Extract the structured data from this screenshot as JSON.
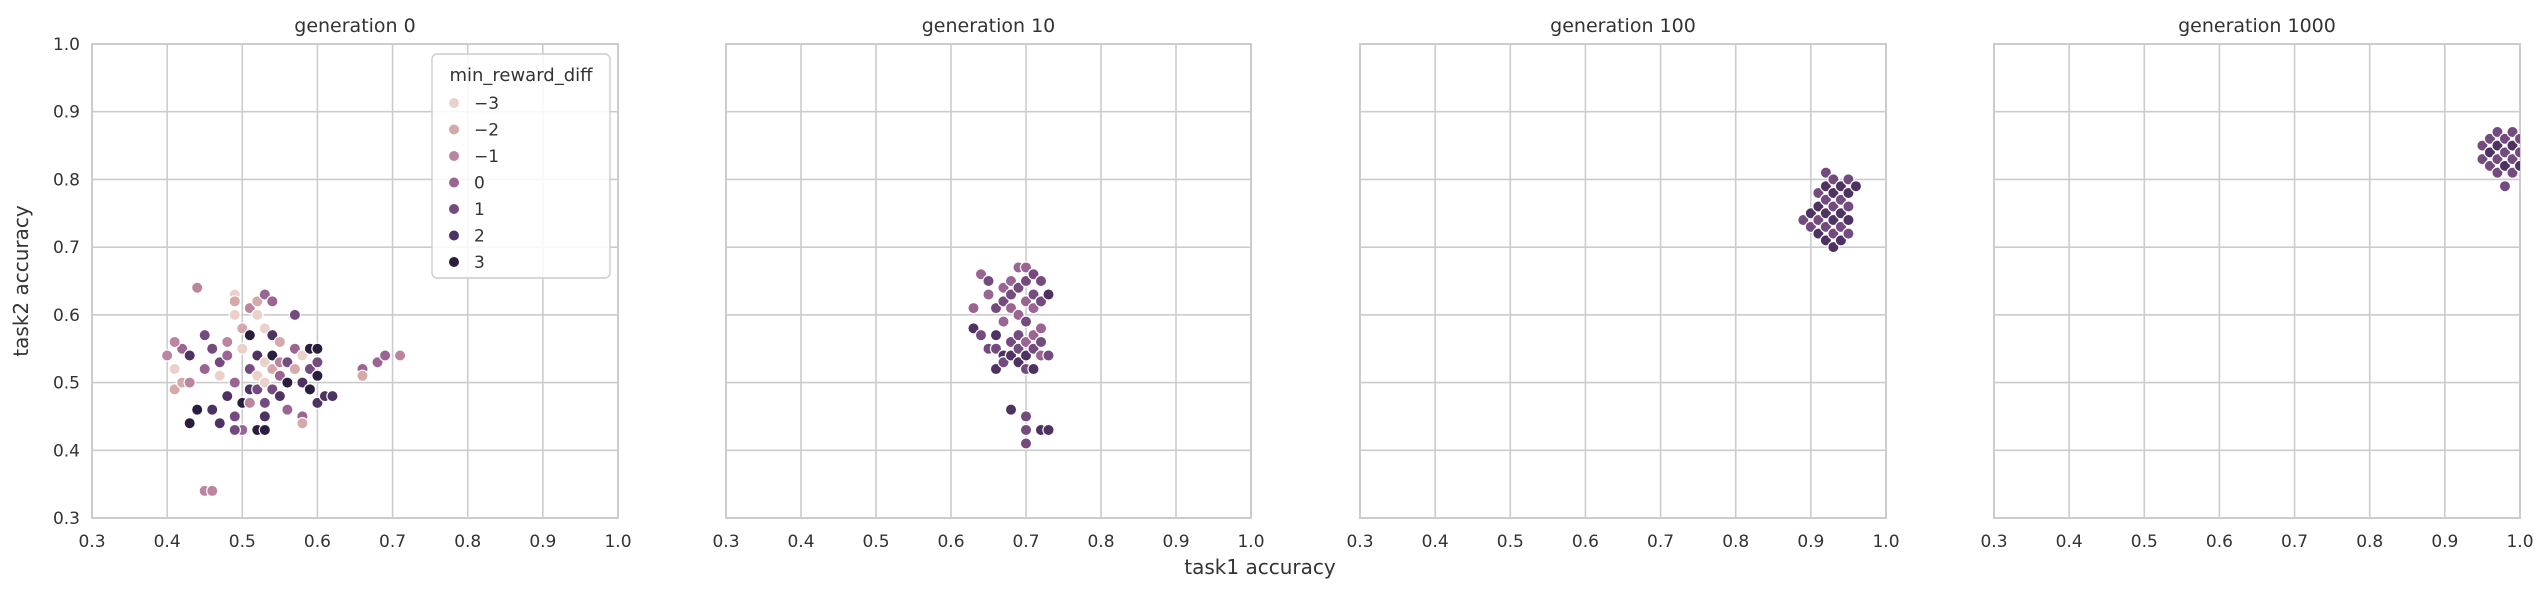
{
  "chart_data": [
    {
      "type": "scatter",
      "title": "generation 0",
      "xlabel": "",
      "ylabel": "task2 accuracy",
      "xlim": [
        0.3,
        1.0
      ],
      "ylim": [
        0.3,
        1.0
      ],
      "xticks": [
        "0.3",
        "0.4",
        "0.5",
        "0.6",
        "0.7",
        "0.8",
        "0.9",
        "1.0"
      ],
      "yticks": [
        "0.3",
        "0.4",
        "0.5",
        "0.6",
        "0.7",
        "0.8",
        "0.9",
        "1.0"
      ],
      "grid": true,
      "legend": {
        "title": "min_reward_diff",
        "placement": "top-right",
        "entries": [
          {
            "label": "−3",
            "color": "#ead1c9"
          },
          {
            "label": "−2",
            "color": "#d5a9a9"
          },
          {
            "label": "−1",
            "color": "#bb85a0"
          },
          {
            "label": "0",
            "color": "#9a6592"
          },
          {
            "label": "1",
            "color": "#744b7f"
          },
          {
            "label": "2",
            "color": "#4d3262"
          },
          {
            "label": "3",
            "color": "#2b1d3e"
          }
        ]
      },
      "points": [
        {
          "x": 0.4,
          "y": 0.54,
          "c": -1
        },
        {
          "x": 0.41,
          "y": 0.52,
          "c": -3
        },
        {
          "x": 0.41,
          "y": 0.49,
          "c": -2
        },
        {
          "x": 0.42,
          "y": 0.55,
          "c": 0
        },
        {
          "x": 0.41,
          "y": 0.56,
          "c": -1
        },
        {
          "x": 0.42,
          "y": 0.5,
          "c": -2
        },
        {
          "x": 0.43,
          "y": 0.5,
          "c": -1
        },
        {
          "x": 0.43,
          "y": 0.54,
          "c": 2
        },
        {
          "x": 0.44,
          "y": 0.64,
          "c": -1
        },
        {
          "x": 0.44,
          "y": 0.46,
          "c": 3
        },
        {
          "x": 0.43,
          "y": 0.44,
          "c": 3
        },
        {
          "x": 0.45,
          "y": 0.57,
          "c": 1
        },
        {
          "x": 0.45,
          "y": 0.52,
          "c": 0
        },
        {
          "x": 0.46,
          "y": 0.55,
          "c": 1
        },
        {
          "x": 0.46,
          "y": 0.46,
          "c": 2
        },
        {
          "x": 0.47,
          "y": 0.44,
          "c": 2
        },
        {
          "x": 0.47,
          "y": 0.51,
          "c": -3
        },
        {
          "x": 0.47,
          "y": 0.53,
          "c": 1
        },
        {
          "x": 0.48,
          "y": 0.48,
          "c": 2
        },
        {
          "x": 0.48,
          "y": 0.54,
          "c": 0
        },
        {
          "x": 0.48,
          "y": 0.56,
          "c": -1
        },
        {
          "x": 0.49,
          "y": 0.63,
          "c": -3
        },
        {
          "x": 0.49,
          "y": 0.62,
          "c": -2
        },
        {
          "x": 0.49,
          "y": 0.6,
          "c": -3
        },
        {
          "x": 0.49,
          "y": 0.5,
          "c": 0
        },
        {
          "x": 0.49,
          "y": 0.45,
          "c": 1
        },
        {
          "x": 0.5,
          "y": 0.47,
          "c": 3
        },
        {
          "x": 0.5,
          "y": 0.43,
          "c": 0
        },
        {
          "x": 0.49,
          "y": 0.43,
          "c": 1
        },
        {
          "x": 0.5,
          "y": 0.55,
          "c": -3
        },
        {
          "x": 0.5,
          "y": 0.58,
          "c": -2
        },
        {
          "x": 0.51,
          "y": 0.52,
          "c": 1
        },
        {
          "x": 0.51,
          "y": 0.49,
          "c": 2
        },
        {
          "x": 0.51,
          "y": 0.47,
          "c": -1
        },
        {
          "x": 0.51,
          "y": 0.61,
          "c": -1
        },
        {
          "x": 0.51,
          "y": 0.57,
          "c": 3
        },
        {
          "x": 0.52,
          "y": 0.62,
          "c": -2
        },
        {
          "x": 0.52,
          "y": 0.6,
          "c": -3
        },
        {
          "x": 0.52,
          "y": 0.54,
          "c": 2
        },
        {
          "x": 0.52,
          "y": 0.51,
          "c": -3
        },
        {
          "x": 0.52,
          "y": 0.49,
          "c": 1
        },
        {
          "x": 0.52,
          "y": 0.43,
          "c": 3
        },
        {
          "x": 0.53,
          "y": 0.63,
          "c": 0
        },
        {
          "x": 0.53,
          "y": 0.58,
          "c": -3
        },
        {
          "x": 0.53,
          "y": 0.53,
          "c": -3
        },
        {
          "x": 0.53,
          "y": 0.5,
          "c": -3
        },
        {
          "x": 0.53,
          "y": 0.47,
          "c": 1
        },
        {
          "x": 0.53,
          "y": 0.45,
          "c": 2
        },
        {
          "x": 0.53,
          "y": 0.43,
          "c": 3
        },
        {
          "x": 0.54,
          "y": 0.62,
          "c": 0
        },
        {
          "x": 0.54,
          "y": 0.57,
          "c": 2
        },
        {
          "x": 0.54,
          "y": 0.52,
          "c": -2
        },
        {
          "x": 0.54,
          "y": 0.49,
          "c": 1
        },
        {
          "x": 0.54,
          "y": 0.54,
          "c": 3
        },
        {
          "x": 0.55,
          "y": 0.56,
          "c": -2
        },
        {
          "x": 0.55,
          "y": 0.53,
          "c": -1
        },
        {
          "x": 0.55,
          "y": 0.51,
          "c": 0
        },
        {
          "x": 0.55,
          "y": 0.48,
          "c": 2
        },
        {
          "x": 0.56,
          "y": 0.46,
          "c": 0
        },
        {
          "x": 0.56,
          "y": 0.53,
          "c": 1
        },
        {
          "x": 0.56,
          "y": 0.5,
          "c": 3
        },
        {
          "x": 0.57,
          "y": 0.6,
          "c": 1
        },
        {
          "x": 0.57,
          "y": 0.55,
          "c": 0
        },
        {
          "x": 0.57,
          "y": 0.52,
          "c": -2
        },
        {
          "x": 0.58,
          "y": 0.45,
          "c": 0
        },
        {
          "x": 0.58,
          "y": 0.44,
          "c": -2
        },
        {
          "x": 0.58,
          "y": 0.5,
          "c": 2
        },
        {
          "x": 0.58,
          "y": 0.54,
          "c": -3
        },
        {
          "x": 0.59,
          "y": 0.55,
          "c": 3
        },
        {
          "x": 0.59,
          "y": 0.52,
          "c": 1
        },
        {
          "x": 0.59,
          "y": 0.49,
          "c": 3
        },
        {
          "x": 0.6,
          "y": 0.55,
          "c": 3
        },
        {
          "x": 0.6,
          "y": 0.51,
          "c": 3
        },
        {
          "x": 0.6,
          "y": 0.47,
          "c": 2
        },
        {
          "x": 0.6,
          "y": 0.53,
          "c": 1
        },
        {
          "x": 0.61,
          "y": 0.48,
          "c": 2
        },
        {
          "x": 0.62,
          "y": 0.48,
          "c": 2
        },
        {
          "x": 0.66,
          "y": 0.52,
          "c": 0
        },
        {
          "x": 0.66,
          "y": 0.51,
          "c": -2
        },
        {
          "x": 0.68,
          "y": 0.53,
          "c": 0
        },
        {
          "x": 0.69,
          "y": 0.54,
          "c": 0
        },
        {
          "x": 0.71,
          "y": 0.54,
          "c": -1
        },
        {
          "x": 0.45,
          "y": 0.34,
          "c": -1
        },
        {
          "x": 0.46,
          "y": 0.34,
          "c": -1
        }
      ]
    },
    {
      "type": "scatter",
      "title": "generation 10",
      "xlabel": "task1 accuracy",
      "ylabel": "",
      "xlim": [
        0.3,
        1.0
      ],
      "ylim": [
        0.3,
        1.0
      ],
      "xticks": [
        "0.3",
        "0.4",
        "0.5",
        "0.6",
        "0.7",
        "0.8",
        "0.9",
        "1.0"
      ],
      "grid": true,
      "points": [
        {
          "x": 0.63,
          "y": 0.61,
          "c": 0
        },
        {
          "x": 0.63,
          "y": 0.58,
          "c": 2
        },
        {
          "x": 0.64,
          "y": 0.66,
          "c": 0
        },
        {
          "x": 0.64,
          "y": 0.57,
          "c": 1
        },
        {
          "x": 0.65,
          "y": 0.65,
          "c": 1
        },
        {
          "x": 0.65,
          "y": 0.63,
          "c": 0
        },
        {
          "x": 0.65,
          "y": 0.55,
          "c": 1
        },
        {
          "x": 0.66,
          "y": 0.55,
          "c": 1
        },
        {
          "x": 0.66,
          "y": 0.57,
          "c": 2
        },
        {
          "x": 0.66,
          "y": 0.61,
          "c": 1
        },
        {
          "x": 0.66,
          "y": 0.52,
          "c": 2
        },
        {
          "x": 0.67,
          "y": 0.64,
          "c": 0
        },
        {
          "x": 0.67,
          "y": 0.62,
          "c": 1
        },
        {
          "x": 0.67,
          "y": 0.59,
          "c": 0
        },
        {
          "x": 0.67,
          "y": 0.54,
          "c": 2
        },
        {
          "x": 0.67,
          "y": 0.53,
          "c": 1
        },
        {
          "x": 0.68,
          "y": 0.65,
          "c": 0
        },
        {
          "x": 0.68,
          "y": 0.63,
          "c": 1
        },
        {
          "x": 0.68,
          "y": 0.61,
          "c": 0
        },
        {
          "x": 0.68,
          "y": 0.56,
          "c": 1
        },
        {
          "x": 0.68,
          "y": 0.54,
          "c": 2
        },
        {
          "x": 0.68,
          "y": 0.46,
          "c": 2
        },
        {
          "x": 0.69,
          "y": 0.67,
          "c": 0
        },
        {
          "x": 0.69,
          "y": 0.64,
          "c": 1
        },
        {
          "x": 0.69,
          "y": 0.6,
          "c": 0
        },
        {
          "x": 0.69,
          "y": 0.57,
          "c": 1
        },
        {
          "x": 0.69,
          "y": 0.55,
          "c": 1
        },
        {
          "x": 0.69,
          "y": 0.53,
          "c": 2
        },
        {
          "x": 0.7,
          "y": 0.67,
          "c": 0
        },
        {
          "x": 0.7,
          "y": 0.65,
          "c": 1
        },
        {
          "x": 0.7,
          "y": 0.62,
          "c": 0
        },
        {
          "x": 0.7,
          "y": 0.59,
          "c": 1
        },
        {
          "x": 0.7,
          "y": 0.56,
          "c": 0
        },
        {
          "x": 0.7,
          "y": 0.54,
          "c": 2
        },
        {
          "x": 0.7,
          "y": 0.52,
          "c": 1
        },
        {
          "x": 0.7,
          "y": 0.45,
          "c": 1
        },
        {
          "x": 0.7,
          "y": 0.43,
          "c": 1
        },
        {
          "x": 0.7,
          "y": 0.41,
          "c": 1
        },
        {
          "x": 0.71,
          "y": 0.66,
          "c": 1
        },
        {
          "x": 0.71,
          "y": 0.63,
          "c": 1
        },
        {
          "x": 0.71,
          "y": 0.61,
          "c": 0
        },
        {
          "x": 0.71,
          "y": 0.57,
          "c": 0
        },
        {
          "x": 0.71,
          "y": 0.55,
          "c": 1
        },
        {
          "x": 0.71,
          "y": 0.52,
          "c": 2
        },
        {
          "x": 0.72,
          "y": 0.65,
          "c": 1
        },
        {
          "x": 0.72,
          "y": 0.62,
          "c": 1
        },
        {
          "x": 0.72,
          "y": 0.58,
          "c": 0
        },
        {
          "x": 0.72,
          "y": 0.56,
          "c": 1
        },
        {
          "x": 0.72,
          "y": 0.54,
          "c": 0
        },
        {
          "x": 0.72,
          "y": 0.43,
          "c": 2
        },
        {
          "x": 0.73,
          "y": 0.63,
          "c": 2
        },
        {
          "x": 0.73,
          "y": 0.54,
          "c": 1
        },
        {
          "x": 0.73,
          "y": 0.43,
          "c": 2
        }
      ]
    },
    {
      "type": "scatter",
      "title": "generation 100",
      "xlabel": "",
      "ylabel": "",
      "xlim": [
        0.3,
        1.0
      ],
      "ylim": [
        0.3,
        1.0
      ],
      "xticks": [
        "0.3",
        "0.4",
        "0.5",
        "0.6",
        "0.7",
        "0.8",
        "0.9",
        "1.0"
      ],
      "grid": true,
      "points": [
        {
          "x": 0.89,
          "y": 0.74,
          "c": 1
        },
        {
          "x": 0.9,
          "y": 0.75,
          "c": 2
        },
        {
          "x": 0.9,
          "y": 0.73,
          "c": 1
        },
        {
          "x": 0.91,
          "y": 0.78,
          "c": 1
        },
        {
          "x": 0.91,
          "y": 0.76,
          "c": 2
        },
        {
          "x": 0.91,
          "y": 0.74,
          "c": 1
        },
        {
          "x": 0.91,
          "y": 0.72,
          "c": 2
        },
        {
          "x": 0.92,
          "y": 0.81,
          "c": 1
        },
        {
          "x": 0.92,
          "y": 0.79,
          "c": 2
        },
        {
          "x": 0.92,
          "y": 0.77,
          "c": 1
        },
        {
          "x": 0.92,
          "y": 0.75,
          "c": 2
        },
        {
          "x": 0.92,
          "y": 0.73,
          "c": 1
        },
        {
          "x": 0.92,
          "y": 0.71,
          "c": 2
        },
        {
          "x": 0.93,
          "y": 0.8,
          "c": 1
        },
        {
          "x": 0.93,
          "y": 0.78,
          "c": 2
        },
        {
          "x": 0.93,
          "y": 0.76,
          "c": 1
        },
        {
          "x": 0.93,
          "y": 0.74,
          "c": 2
        },
        {
          "x": 0.93,
          "y": 0.72,
          "c": 1
        },
        {
          "x": 0.93,
          "y": 0.7,
          "c": 2
        },
        {
          "x": 0.94,
          "y": 0.79,
          "c": 2
        },
        {
          "x": 0.94,
          "y": 0.77,
          "c": 1
        },
        {
          "x": 0.94,
          "y": 0.75,
          "c": 2
        },
        {
          "x": 0.94,
          "y": 0.73,
          "c": 1
        },
        {
          "x": 0.94,
          "y": 0.71,
          "c": 2
        },
        {
          "x": 0.95,
          "y": 0.8,
          "c": 1
        },
        {
          "x": 0.95,
          "y": 0.78,
          "c": 2
        },
        {
          "x": 0.95,
          "y": 0.76,
          "c": 1
        },
        {
          "x": 0.95,
          "y": 0.74,
          "c": 2
        },
        {
          "x": 0.95,
          "y": 0.72,
          "c": 1
        },
        {
          "x": 0.96,
          "y": 0.79,
          "c": 2
        }
      ]
    },
    {
      "type": "scatter",
      "title": "generation 1000",
      "xlabel": "",
      "ylabel": "",
      "xlim": [
        0.3,
        1.0
      ],
      "ylim": [
        0.3,
        1.0
      ],
      "xticks": [
        "0.3",
        "0.4",
        "0.5",
        "0.6",
        "0.7",
        "0.8",
        "0.9",
        "1.0"
      ],
      "grid": true,
      "points": [
        {
          "x": 0.95,
          "y": 0.85,
          "c": 1
        },
        {
          "x": 0.95,
          "y": 0.83,
          "c": 1
        },
        {
          "x": 0.96,
          "y": 0.86,
          "c": 1
        },
        {
          "x": 0.96,
          "y": 0.84,
          "c": 2
        },
        {
          "x": 0.96,
          "y": 0.82,
          "c": 1
        },
        {
          "x": 0.97,
          "y": 0.87,
          "c": 1
        },
        {
          "x": 0.97,
          "y": 0.85,
          "c": 2
        },
        {
          "x": 0.97,
          "y": 0.83,
          "c": 1
        },
        {
          "x": 0.97,
          "y": 0.81,
          "c": 1
        },
        {
          "x": 0.98,
          "y": 0.86,
          "c": 1
        },
        {
          "x": 0.98,
          "y": 0.84,
          "c": 1
        },
        {
          "x": 0.98,
          "y": 0.82,
          "c": 2
        },
        {
          "x": 0.98,
          "y": 0.79,
          "c": 1
        },
        {
          "x": 0.99,
          "y": 0.87,
          "c": 1
        },
        {
          "x": 0.99,
          "y": 0.85,
          "c": 2
        },
        {
          "x": 0.99,
          "y": 0.83,
          "c": 1
        },
        {
          "x": 0.99,
          "y": 0.81,
          "c": 1
        },
        {
          "x": 1.0,
          "y": 0.86,
          "c": 1
        },
        {
          "x": 1.0,
          "y": 0.84,
          "c": 1
        },
        {
          "x": 1.0,
          "y": 0.82,
          "c": 2
        }
      ]
    }
  ]
}
